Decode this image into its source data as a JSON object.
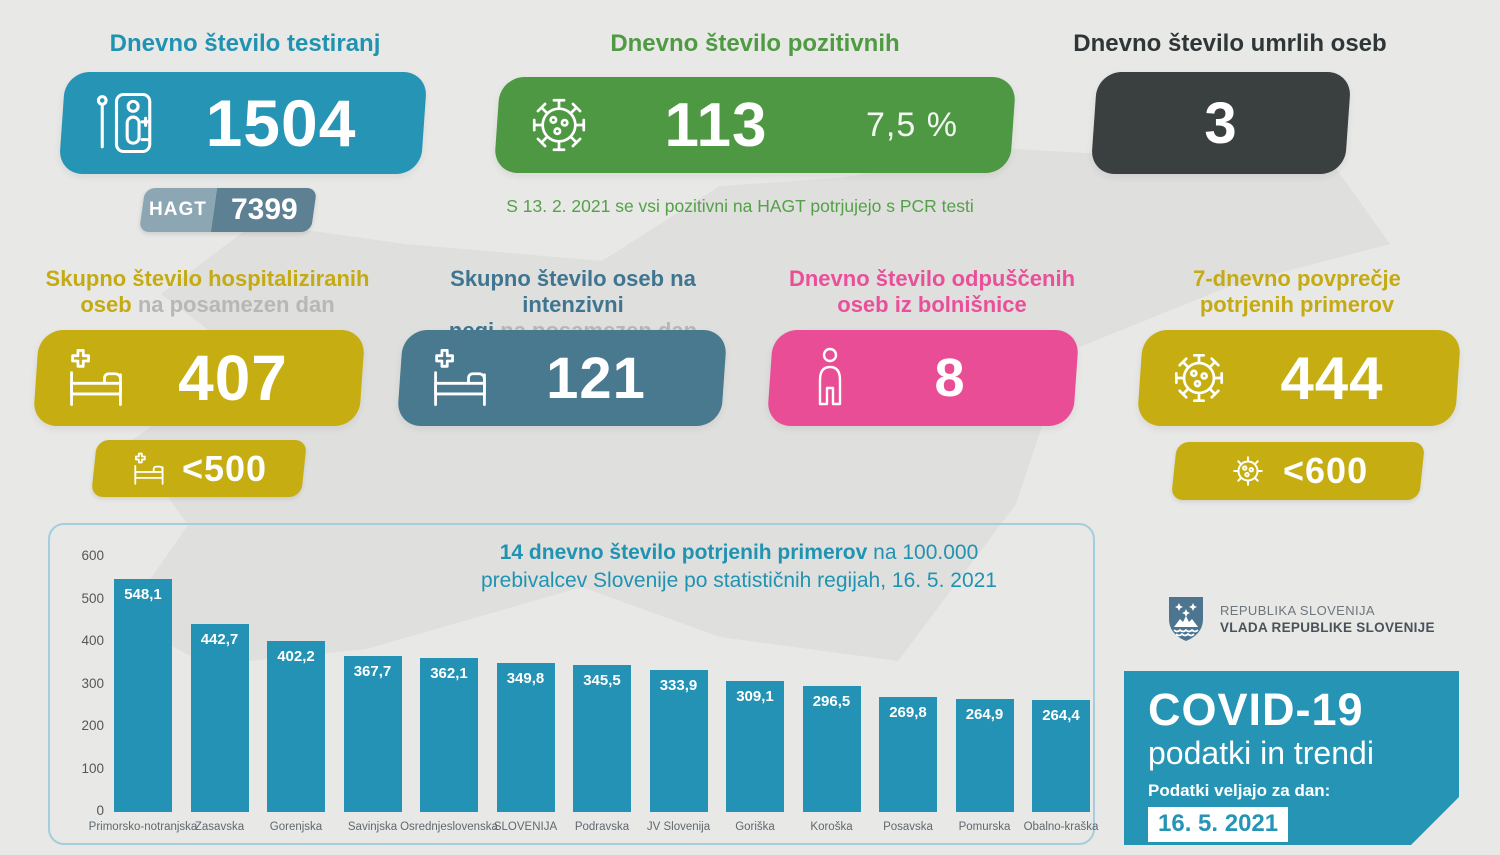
{
  "colors": {
    "teal": "#2695b5",
    "green": "#4f9843",
    "dark": "#3a3f40",
    "yellow": "#c6ae12",
    "slate": "#48798f",
    "pink": "#e94d96",
    "hagt_left": "#8ca7b3",
    "hagt_right": "#5d8093",
    "background": "#e8e8e6",
    "chart_border": "#a4cedd",
    "bar_color": "#2492b4"
  },
  "top": {
    "tests": {
      "title": "Dnevno število testiranj",
      "value": "1504",
      "hagt_label": "HAGT",
      "hagt_value": "7399"
    },
    "positive": {
      "title": "Dnevno število pozitivnih",
      "value": "113",
      "percent": "7,5 %"
    },
    "deaths": {
      "title": "Dnevno število umrlih oseb",
      "value": "3"
    },
    "note": "S 13. 2. 2021 se vsi pozitivni na HAGT potrjujejo s PCR testi"
  },
  "row2": {
    "hospitalized": {
      "title_line1": "Skupno število hospitaliziranih",
      "title_line2_bold": "oseb",
      "title_line2_gray": "na posamezen dan",
      "value": "407",
      "limit": "<500"
    },
    "icu": {
      "title_line1": "Skupno število oseb na intenzivni",
      "title_line2_bold": "negi",
      "title_line2_gray": "na posamezen dan",
      "value": "121"
    },
    "discharged": {
      "title_line1": "Dnevno število odpuščenih",
      "title_line2": "oseb iz bolnišnice",
      "value": "8"
    },
    "avg7": {
      "title_line1": "7-dnevno povprečje",
      "title_line2": "potrjenih primerov",
      "value": "444",
      "limit": "<600"
    }
  },
  "chart_data": {
    "type": "bar",
    "title_bold": "14 dnevno število potrjenih primerov",
    "title_rest": "na 100.000",
    "title_line2": "prebivalcev Slovenije po statističnih regijah, 16. 5. 2021",
    "categories": [
      "Primorsko-notranjska",
      "Zasavska",
      "Gorenjska",
      "Savinjska",
      "Osrednjeslovenska",
      "SLOVENIJA",
      "Podravska",
      "JV Slovenija",
      "Goriška",
      "Koroška",
      "Posavska",
      "Pomurska",
      "Obalno-kraška"
    ],
    "values": [
      548.1,
      442.7,
      402.2,
      367.7,
      362.1,
      349.8,
      345.5,
      333.9,
      309.1,
      296.5,
      269.8,
      264.9,
      264.4
    ],
    "value_labels": [
      "548,1",
      "442,7",
      "402,2",
      "367,7",
      "362,1",
      "349,8",
      "345,5",
      "333,9",
      "309,1",
      "296,5",
      "269,8",
      "264,9",
      "264,4"
    ],
    "xlabel": "",
    "ylabel": "",
    "ylim": [
      0,
      600
    ],
    "ytick_step": 100,
    "grid": false,
    "legend": false,
    "bar_color": "#2492b4"
  },
  "footer": {
    "gov_line1": "REPUBLIKA SLOVENIJA",
    "gov_line2": "VLADA REPUBLIKE SLOVENIJE",
    "covid_title": "COVID-19",
    "covid_subtitle": "podatki in trendi",
    "date_label": "Podatki veljajo za dan:",
    "date_value": "16. 5. 2021"
  }
}
